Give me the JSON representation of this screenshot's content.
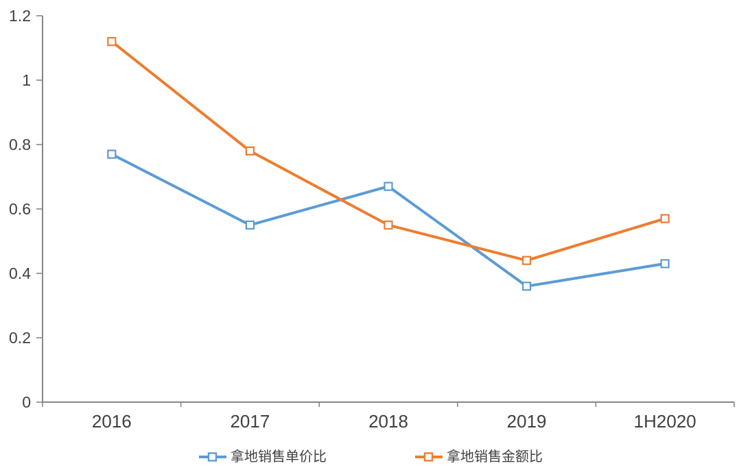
{
  "chart_data": {
    "type": "line",
    "categories": [
      "2016",
      "2017",
      "2018",
      "2019",
      "1H2020"
    ],
    "series": [
      {
        "name": "拿地销售单价比",
        "color": "#5B9BD5",
        "values": [
          0.77,
          0.55,
          0.67,
          0.36,
          0.43
        ]
      },
      {
        "name": "拿地销售金额比",
        "color": "#ED7D31",
        "values": [
          1.12,
          0.78,
          0.55,
          0.44,
          0.57
        ]
      }
    ],
    "ylim": [
      0,
      1.2
    ],
    "y_ticks": [
      0,
      0.2,
      0.4,
      0.6,
      0.8,
      1,
      1.2
    ],
    "y_tick_labels": [
      "0",
      "0.2",
      "0.4",
      "0.6",
      "0.8",
      "1",
      "1.2"
    ],
    "grid": false,
    "legend_position": "bottom",
    "marker_style": "hollow-square",
    "axis_color": "#868686",
    "text_color": "#404040",
    "background_color": "#FFFFFF"
  }
}
